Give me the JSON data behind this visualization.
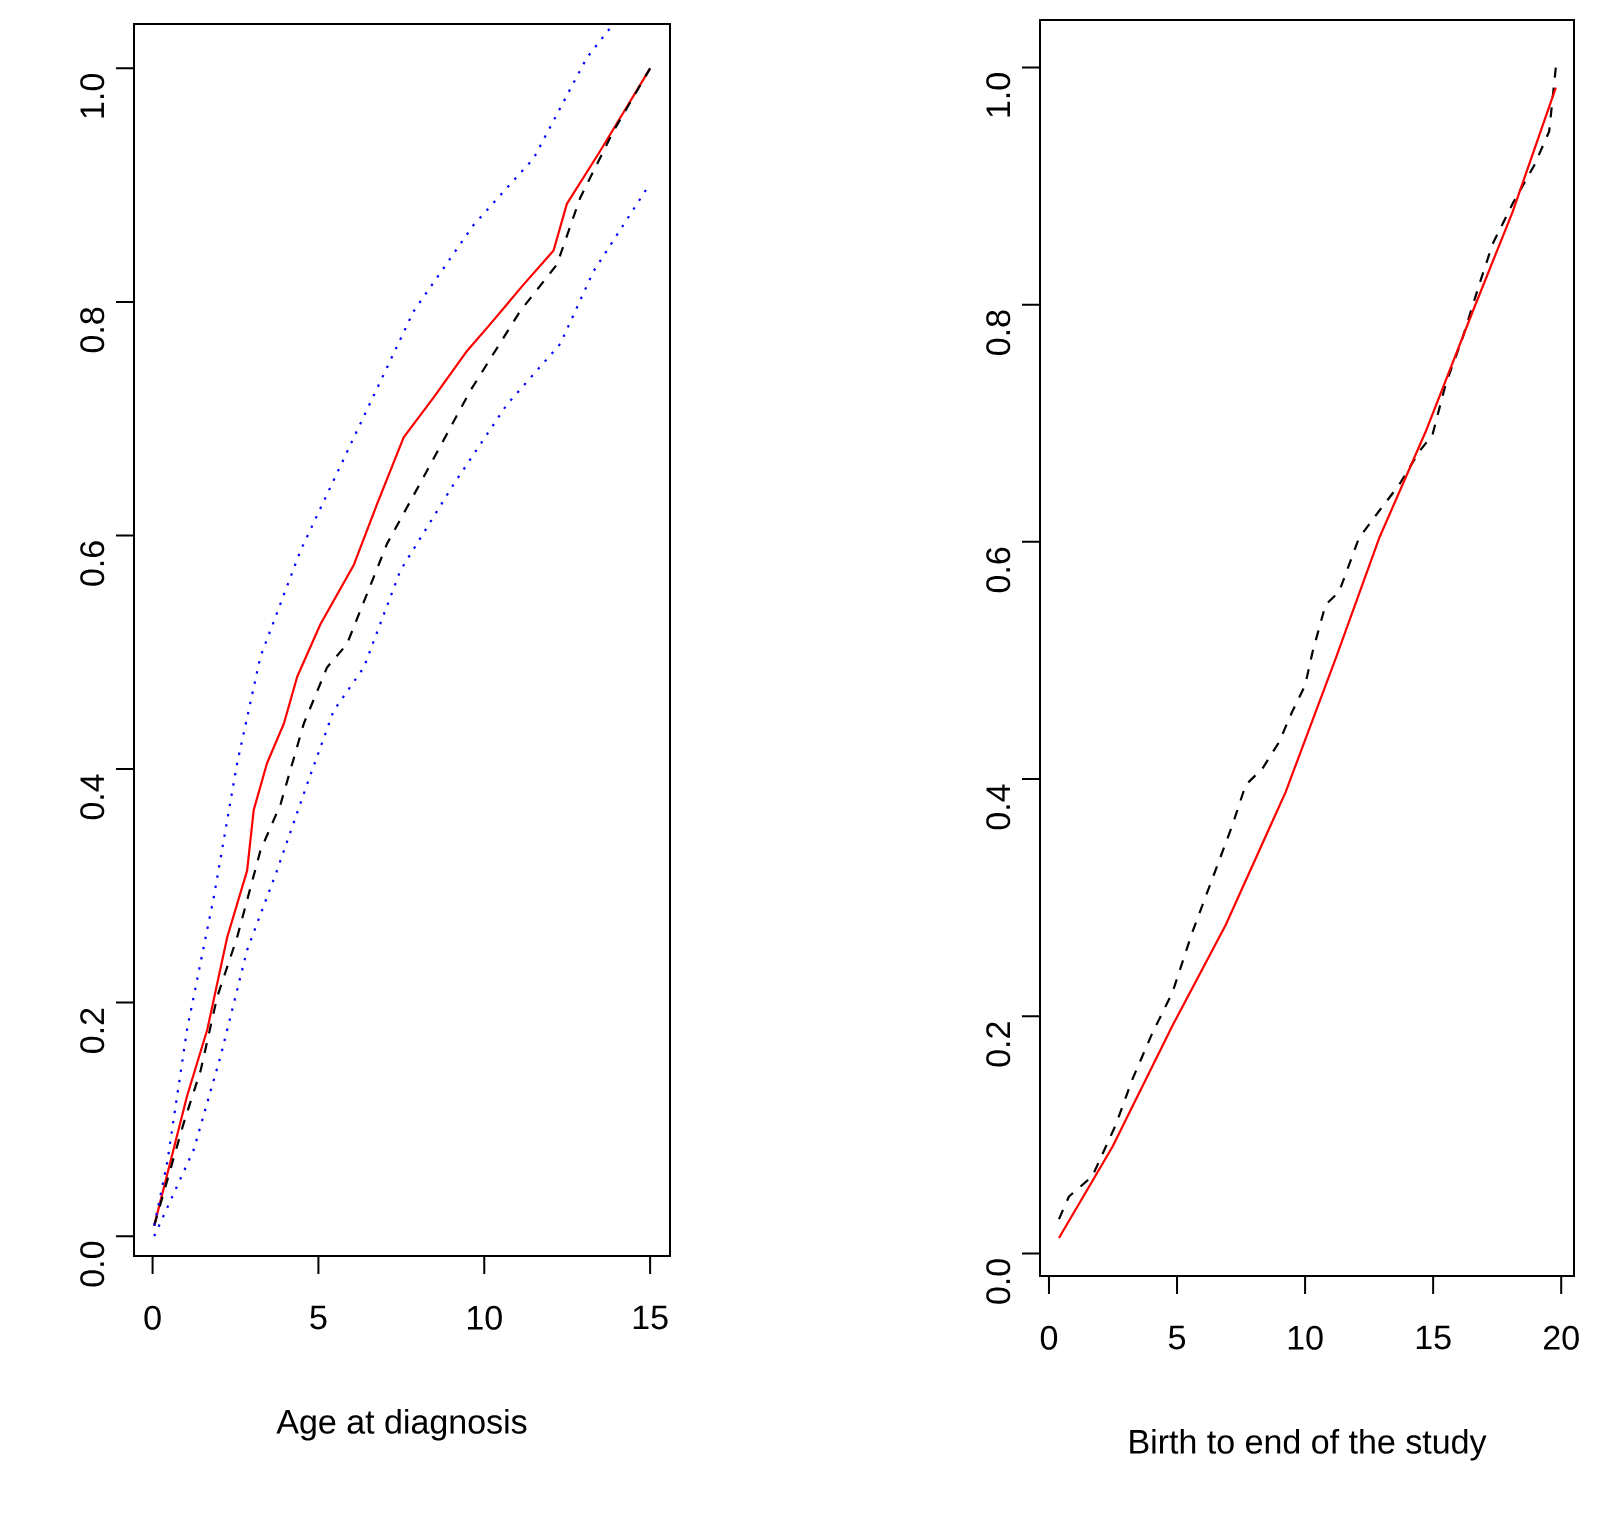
{
  "chart_data": [
    {
      "type": "line",
      "xlabel": "Age at diagnosis",
      "xlim": [
        -0.56,
        15.6
      ],
      "ylim": [
        -0.017,
        1.038
      ],
      "xticks": [
        0,
        5,
        10,
        15
      ],
      "yticks": [
        {
          "value": 0,
          "label": "0.0"
        },
        {
          "value": 0.2,
          "label": "0.2"
        },
        {
          "value": 0.4,
          "label": "0.4"
        },
        {
          "value": 0.6,
          "label": "0.6"
        },
        {
          "value": 0.8,
          "label": "0.8"
        },
        {
          "value": 1,
          "label": "1.0"
        }
      ],
      "series": [
        {
          "color": "#ff0000",
          "line_style": "solid",
          "x": [
            0.05,
            1.04,
            1.65,
            2.25,
            2.85,
            3.05,
            3.45,
            3.96,
            4.36,
            5.06,
            6.07,
            6.77,
            7.57,
            8.47,
            9.48,
            10.18,
            11.19,
            12.09,
            12.49,
            13.49,
            15
          ],
          "values": [
            0.009,
            0.12,
            0.177,
            0.256,
            0.313,
            0.365,
            0.405,
            0.439,
            0.479,
            0.524,
            0.575,
            0.627,
            0.684,
            0.718,
            0.758,
            0.781,
            0.815,
            0.844,
            0.884,
            0.929,
            1.0
          ]
        },
        {
          "color": "#000000",
          "line_style": "dashed",
          "x": [
            0.05,
            0.94,
            1.45,
            1.95,
            2.55,
            3.25,
            3.86,
            4.56,
            5.26,
            5.86,
            7.07,
            8.17,
            9.58,
            11.08,
            12.19,
            12.89,
            13.89,
            15
          ],
          "values": [
            0.009,
            0.097,
            0.142,
            0.205,
            0.256,
            0.33,
            0.37,
            0.439,
            0.487,
            0.507,
            0.593,
            0.65,
            0.724,
            0.792,
            0.832,
            0.889,
            0.946,
            1.0
          ]
        },
        {
          "color": "#0000ff",
          "line_style": "dotted",
          "x": [
            0.05,
            0.44,
            1.04,
            1.85,
            2.55,
            3.25,
            4.46,
            6.07,
            7.87,
            9.68,
            11.49,
            13.09,
            13.89
          ],
          "values": [
            0.009,
            0.063,
            0.177,
            0.291,
            0.405,
            0.496,
            0.587,
            0.684,
            0.792,
            0.866,
            0.923,
            1.009,
            1.038
          ]
        },
        {
          "color": "#0000ff",
          "line_style": "dotted",
          "x": [
            0.05,
            1.24,
            2.05,
            2.85,
            3.75,
            4.66,
            5.46,
            6.37,
            7.47,
            9.08,
            10.68,
            12.29,
            13.29,
            14.9
          ],
          "values": [
            0.0,
            0.074,
            0.154,
            0.245,
            0.313,
            0.387,
            0.45,
            0.487,
            0.57,
            0.644,
            0.712,
            0.764,
            0.826,
            0.897
          ]
        }
      ]
    },
    {
      "type": "line",
      "xlabel": "Birth to end of the study",
      "xlim": [
        -0.35,
        20.5
      ],
      "ylim": [
        -0.019,
        1.04
      ],
      "xticks": [
        0,
        5,
        10,
        15,
        20
      ],
      "yticks": [
        {
          "value": 0,
          "label": "0.0"
        },
        {
          "value": 0.2,
          "label": "0.2"
        },
        {
          "value": 0.4,
          "label": "0.4"
        },
        {
          "value": 0.6,
          "label": "0.6"
        },
        {
          "value": 0.8,
          "label": "0.8"
        },
        {
          "value": 1,
          "label": "1.0"
        }
      ],
      "series": [
        {
          "color": "#000000",
          "line_style": "dashed",
          "x": [
            0.39,
            0.78,
            1.69,
            2.6,
            3.26,
            4.04,
            4.82,
            5.6,
            6.38,
            7.16,
            7.68,
            8.34,
            8.98,
            9.5,
            10.0,
            10.29,
            10.8,
            11.33,
            12.1,
            12.89,
            13.67,
            14.45,
            14.97,
            15.49,
            16.15,
            16.8,
            17.32,
            18.1,
            18.96,
            19.53,
            19.79
          ],
          "values": [
            0.029,
            0.048,
            0.065,
            0.108,
            0.147,
            0.186,
            0.22,
            0.271,
            0.316,
            0.361,
            0.395,
            0.409,
            0.431,
            0.457,
            0.479,
            0.507,
            0.547,
            0.558,
            0.603,
            0.626,
            0.648,
            0.676,
            0.69,
            0.733,
            0.772,
            0.817,
            0.851,
            0.885,
            0.918,
            0.946,
            1.0
          ]
        },
        {
          "color": "#ff0000",
          "line_style": "solid",
          "x": [
            0.39,
            2.48,
            4.82,
            6.9,
            9.24,
            11.2,
            12.89,
            14.71,
            16.54,
            18.1,
            19.79
          ],
          "values": [
            0.013,
            0.09,
            0.192,
            0.277,
            0.389,
            0.502,
            0.603,
            0.693,
            0.794,
            0.878,
            0.983
          ]
        }
      ]
    }
  ]
}
